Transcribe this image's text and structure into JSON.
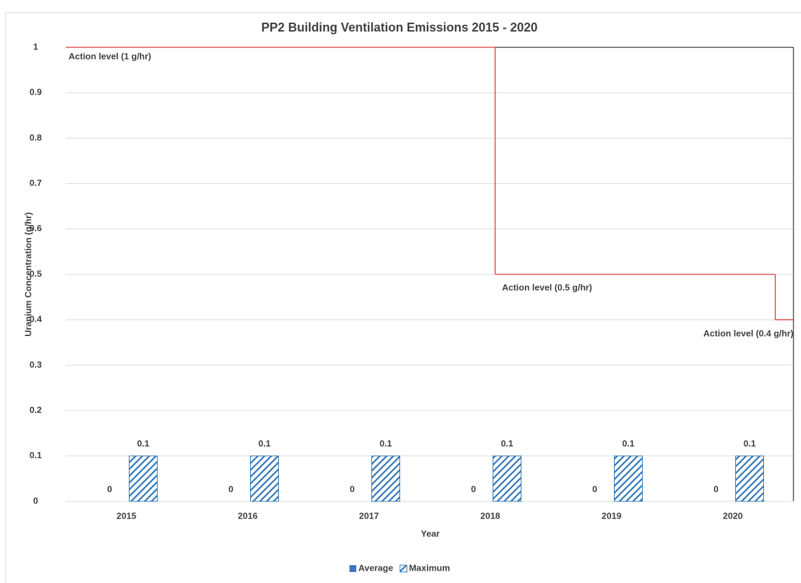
{
  "chart_data": {
    "type": "bar",
    "title": "PP2 Building Ventilation Emissions 2015 - 2020",
    "x_label": "Year",
    "y_label": "Uranium Concentration (g/hr)",
    "categories": [
      "2015",
      "2016",
      "2017",
      "2018",
      "2019",
      "2020"
    ],
    "series": [
      {
        "name": "Average",
        "color": "#4472c4",
        "fill": "solid",
        "values": [
          0,
          0,
          0,
          0,
          0,
          0
        ]
      },
      {
        "name": "Maximum",
        "color": "#2e75b6",
        "fill": "hatch",
        "values": [
          0.1,
          0.1,
          0.1,
          0.1,
          0.1,
          0.1
        ]
      }
    ],
    "action_levels": [
      {
        "label": "Action level (1 g/hr)",
        "value": 1,
        "x": [
          -0.5,
          3.04
        ]
      },
      {
        "label": "Action level (0.5 g/hr)",
        "value": 0.5,
        "x": [
          3.04,
          5.35
        ]
      },
      {
        "label": "Action level (0.4 g/hr)",
        "value": 0.4,
        "x": [
          5.35,
          5.5
        ]
      }
    ],
    "action_color": "#e03030",
    "ylim": [
      0,
      1
    ],
    "yticks": [
      0,
      0.1,
      0.2,
      0.3,
      0.4,
      0.5,
      0.6,
      0.7,
      0.8,
      0.9,
      1
    ],
    "grid": true,
    "legend": "bottom"
  }
}
